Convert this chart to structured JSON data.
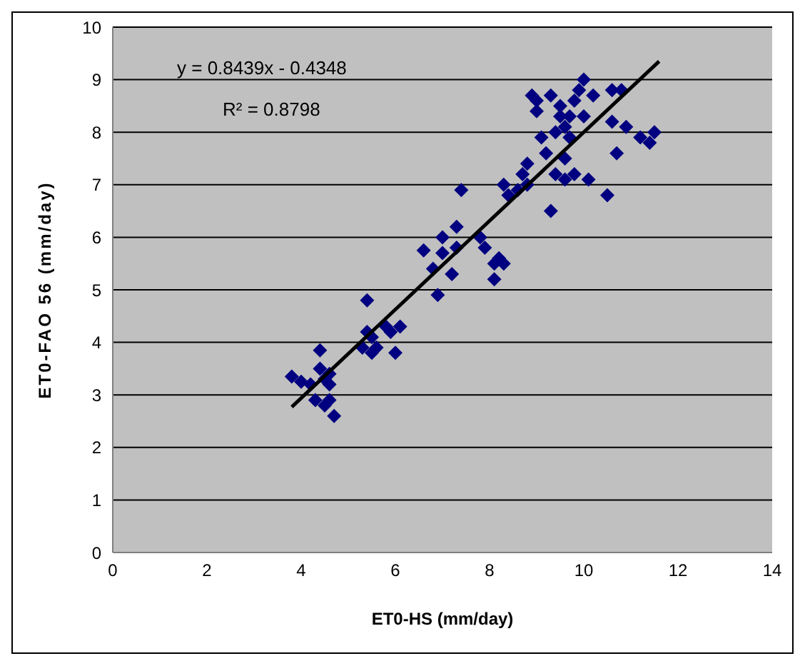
{
  "chart_data": {
    "type": "scatter",
    "xlabel": "ET0-HS (mm/day)",
    "ylabel": "ET0-FAO 56 (mm/day)",
    "annotations": [
      "y = 0.8439x - 0.4348",
      "R² = 0.8798"
    ],
    "xlim": [
      0,
      14
    ],
    "xticks": [
      0,
      2,
      4,
      6,
      8,
      10,
      12,
      14
    ],
    "ylim": [
      0,
      10
    ],
    "yticks": [
      0,
      1,
      2,
      3,
      4,
      5,
      6,
      7,
      8,
      9,
      10
    ],
    "grid": "y",
    "series": [
      {
        "marker": "diamond",
        "color": "#000080",
        "x": [
          3.8,
          4.0,
          4.2,
          4.3,
          4.4,
          4.4,
          4.5,
          4.5,
          4.6,
          4.6,
          4.6,
          4.7,
          5.3,
          5.4,
          5.4,
          5.5,
          5.5,
          5.6,
          5.8,
          5.9,
          6.0,
          6.1,
          6.6,
          6.8,
          6.9,
          7.0,
          7.0,
          7.2,
          7.3,
          7.3,
          7.4,
          7.8,
          7.9,
          8.1,
          8.1,
          8.2,
          8.3,
          8.3,
          8.4,
          8.6,
          8.7,
          8.8,
          8.8,
          8.9,
          9.0,
          9.0,
          9.1,
          9.2,
          9.3,
          9.3,
          9.4,
          9.4,
          9.5,
          9.5,
          9.6,
          9.6,
          9.6,
          9.7,
          9.7,
          9.8,
          9.8,
          9.9,
          10.0,
          10.0,
          10.1,
          10.2,
          10.5,
          10.6,
          10.6,
          10.7,
          10.8,
          10.9,
          11.2,
          11.4,
          11.5
        ],
        "values": [
          3.35,
          3.25,
          3.2,
          2.9,
          3.85,
          3.5,
          3.3,
          2.8,
          3.2,
          3.4,
          2.9,
          2.6,
          3.9,
          4.8,
          4.2,
          4.1,
          3.8,
          3.9,
          4.3,
          4.2,
          3.8,
          4.3,
          5.75,
          5.4,
          4.9,
          6.0,
          5.7,
          5.3,
          6.2,
          5.8,
          6.9,
          6.0,
          5.8,
          5.2,
          5.5,
          5.6,
          5.5,
          7.0,
          6.8,
          6.9,
          7.2,
          7.4,
          7.0,
          8.7,
          8.6,
          8.4,
          7.9,
          7.6,
          8.7,
          6.5,
          8.0,
          7.2,
          8.3,
          8.5,
          7.5,
          8.1,
          7.1,
          8.3,
          7.9,
          8.6,
          7.2,
          8.8,
          8.3,
          9.0,
          7.1,
          8.7,
          6.8,
          8.8,
          8.2,
          7.6,
          8.8,
          8.1,
          7.9,
          7.8,
          8.0
        ]
      },
      {
        "type": "line",
        "marker": "none",
        "color": "#000000",
        "x": [
          3.8,
          11.6
        ],
        "values": [
          2.77,
          9.35
        ]
      }
    ]
  }
}
